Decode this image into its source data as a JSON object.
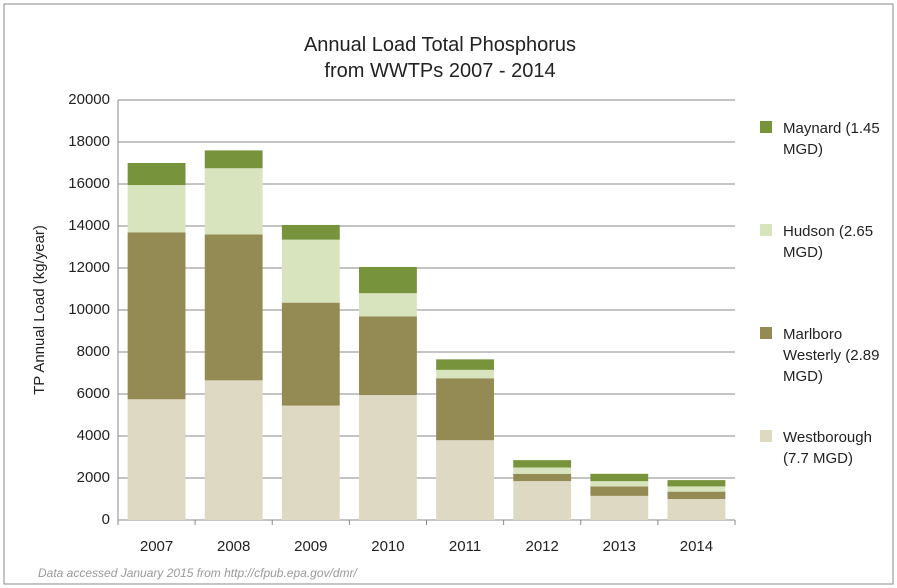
{
  "chart_data": {
    "type": "stacked_bar",
    "title": "Annual Load Total Phosphorus from WWTPs 2007 - 2014",
    "y_label": "TP Annual Load (kg/year)",
    "note": "Data accessed January 2015 from http://cfpub.epa.gov/dmr/",
    "categories": [
      "2007",
      "2008",
      "2009",
      "2010",
      "2011",
      "2012",
      "2013",
      "2014"
    ],
    "series": [
      {
        "name": "Westborough (7.7 MGD)",
        "color": "#ddd9c3",
        "values": [
          5750,
          6650,
          5450,
          5950,
          3800,
          1850,
          1150,
          1000
        ]
      },
      {
        "name": "Marlboro Westerly (2.89 MGD)",
        "color": "#948a54",
        "values": [
          7950,
          6950,
          4900,
          3750,
          2950,
          350,
          450,
          350
        ]
      },
      {
        "name": "Hudson (2.65 MGD)",
        "color": "#d7e4bd",
        "values": [
          2250,
          3150,
          3000,
          1100,
          400,
          300,
          250,
          250
        ]
      },
      {
        "name": "Maynard (1.45 MGD)",
        "color": "#77933c",
        "values": [
          1050,
          850,
          700,
          1250,
          500,
          350,
          350,
          300
        ]
      }
    ],
    "ylim": [
      0,
      20000
    ],
    "yticks": [
      0,
      2000,
      4000,
      6000,
      8000,
      10000,
      12000,
      14000,
      16000,
      18000,
      20000
    ],
    "grid": true
  }
}
